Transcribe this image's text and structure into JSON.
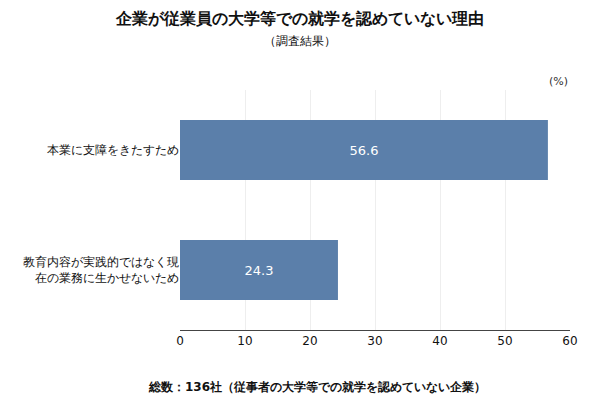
{
  "chart_data": {
    "type": "bar",
    "orientation": "horizontal",
    "title": "企業が従業員の大学等での就学を認めていない理由",
    "subtitle": "（調査結果）",
    "footer": "総数：136社（従事者の大学等での就学を認めていない企業）",
    "xlabel": "(%)",
    "categories": [
      "本業に支障をきたすため",
      "教育内容が実践的ではなく現\n在の業務に生かせないため"
    ],
    "values": [
      56.6,
      24.3
    ],
    "color": "#5b7faa",
    "xlim": [
      0,
      60
    ],
    "xticks": [
      0,
      10,
      20,
      30,
      40,
      50,
      60
    ],
    "grid": true,
    "data_labels": true
  }
}
